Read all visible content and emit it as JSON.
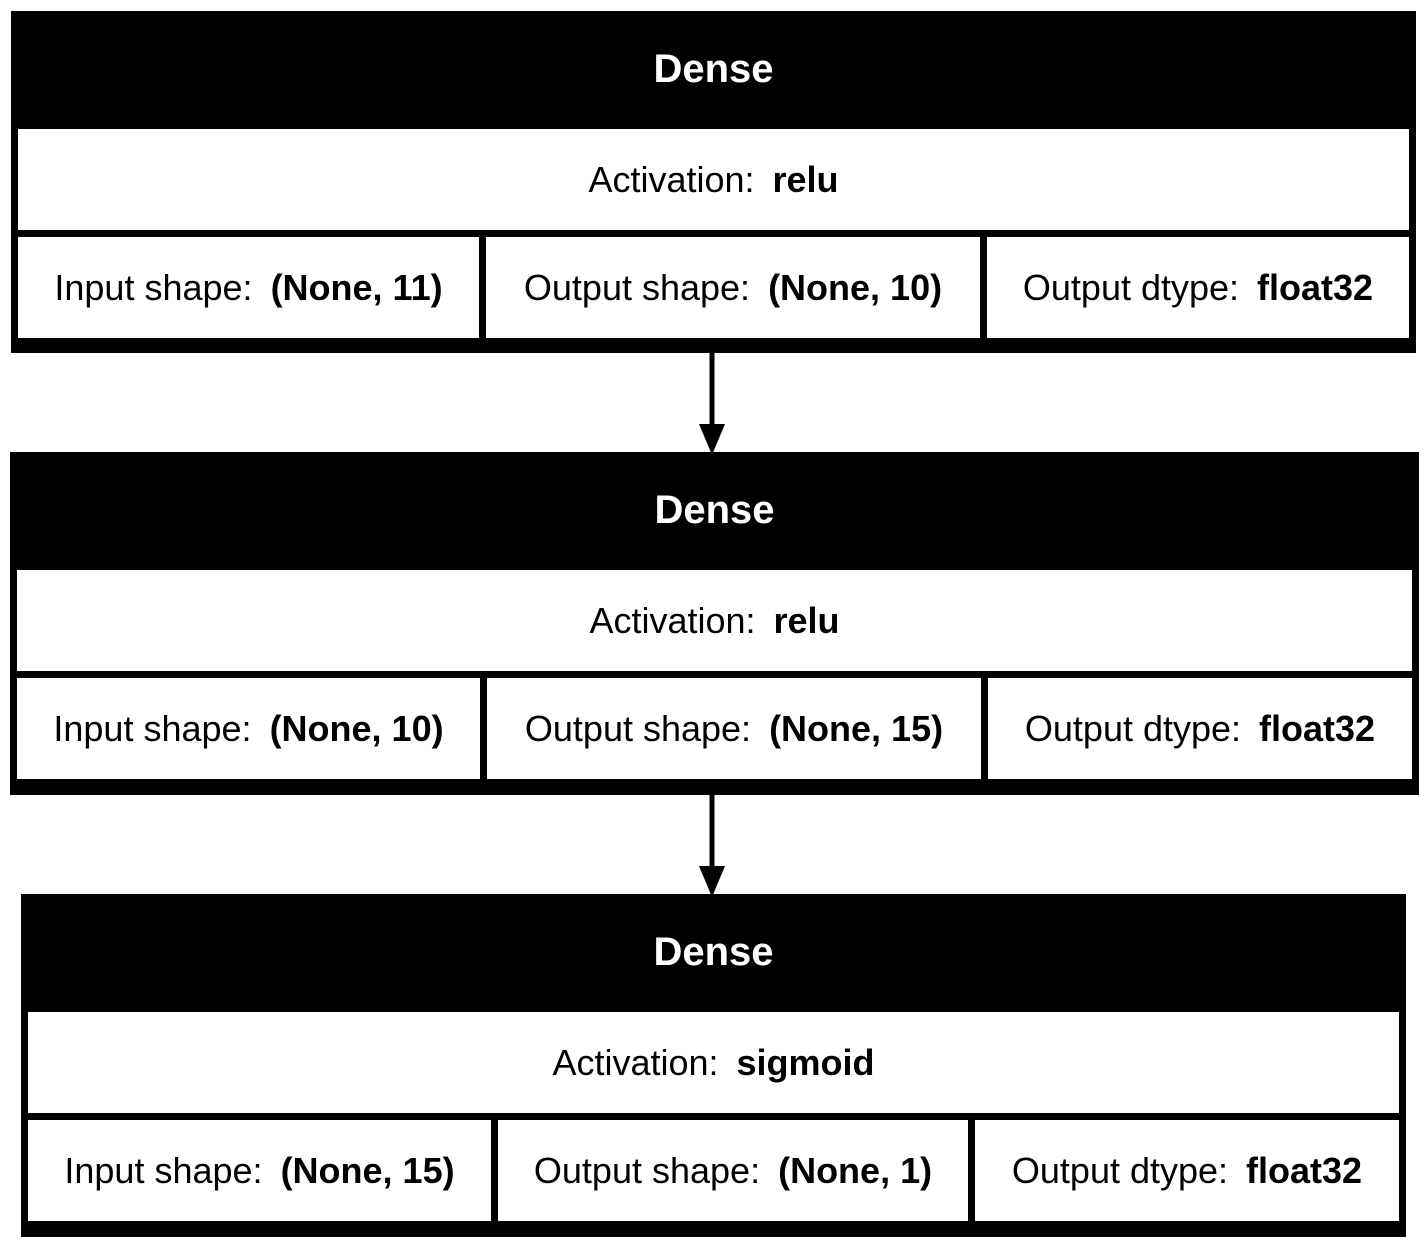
{
  "layers": [
    {
      "type": "Dense",
      "activation_label": "Activation:",
      "activation": "relu",
      "input_label": "Input shape:",
      "input_shape": "(None, 11)",
      "output_label": "Output shape:",
      "output_shape": "(None, 10)",
      "dtype_label": "Output dtype:",
      "dtype": "float32"
    },
    {
      "type": "Dense",
      "activation_label": "Activation:",
      "activation": "relu",
      "input_label": "Input shape:",
      "input_shape": "(None, 10)",
      "output_label": "Output shape:",
      "output_shape": "(None, 15)",
      "dtype_label": "Output dtype:",
      "dtype": "float32"
    },
    {
      "type": "Dense",
      "activation_label": "Activation:",
      "activation": "sigmoid",
      "input_label": "Input shape:",
      "input_shape": "(None, 15)",
      "output_label": "Output shape:",
      "output_shape": "(None, 1)",
      "dtype_label": "Output dtype:",
      "dtype": "float32"
    }
  ],
  "colors": {
    "box": "#000000",
    "cell": "#ffffff",
    "header_text": "#ffffff",
    "arrow": "#000000"
  }
}
